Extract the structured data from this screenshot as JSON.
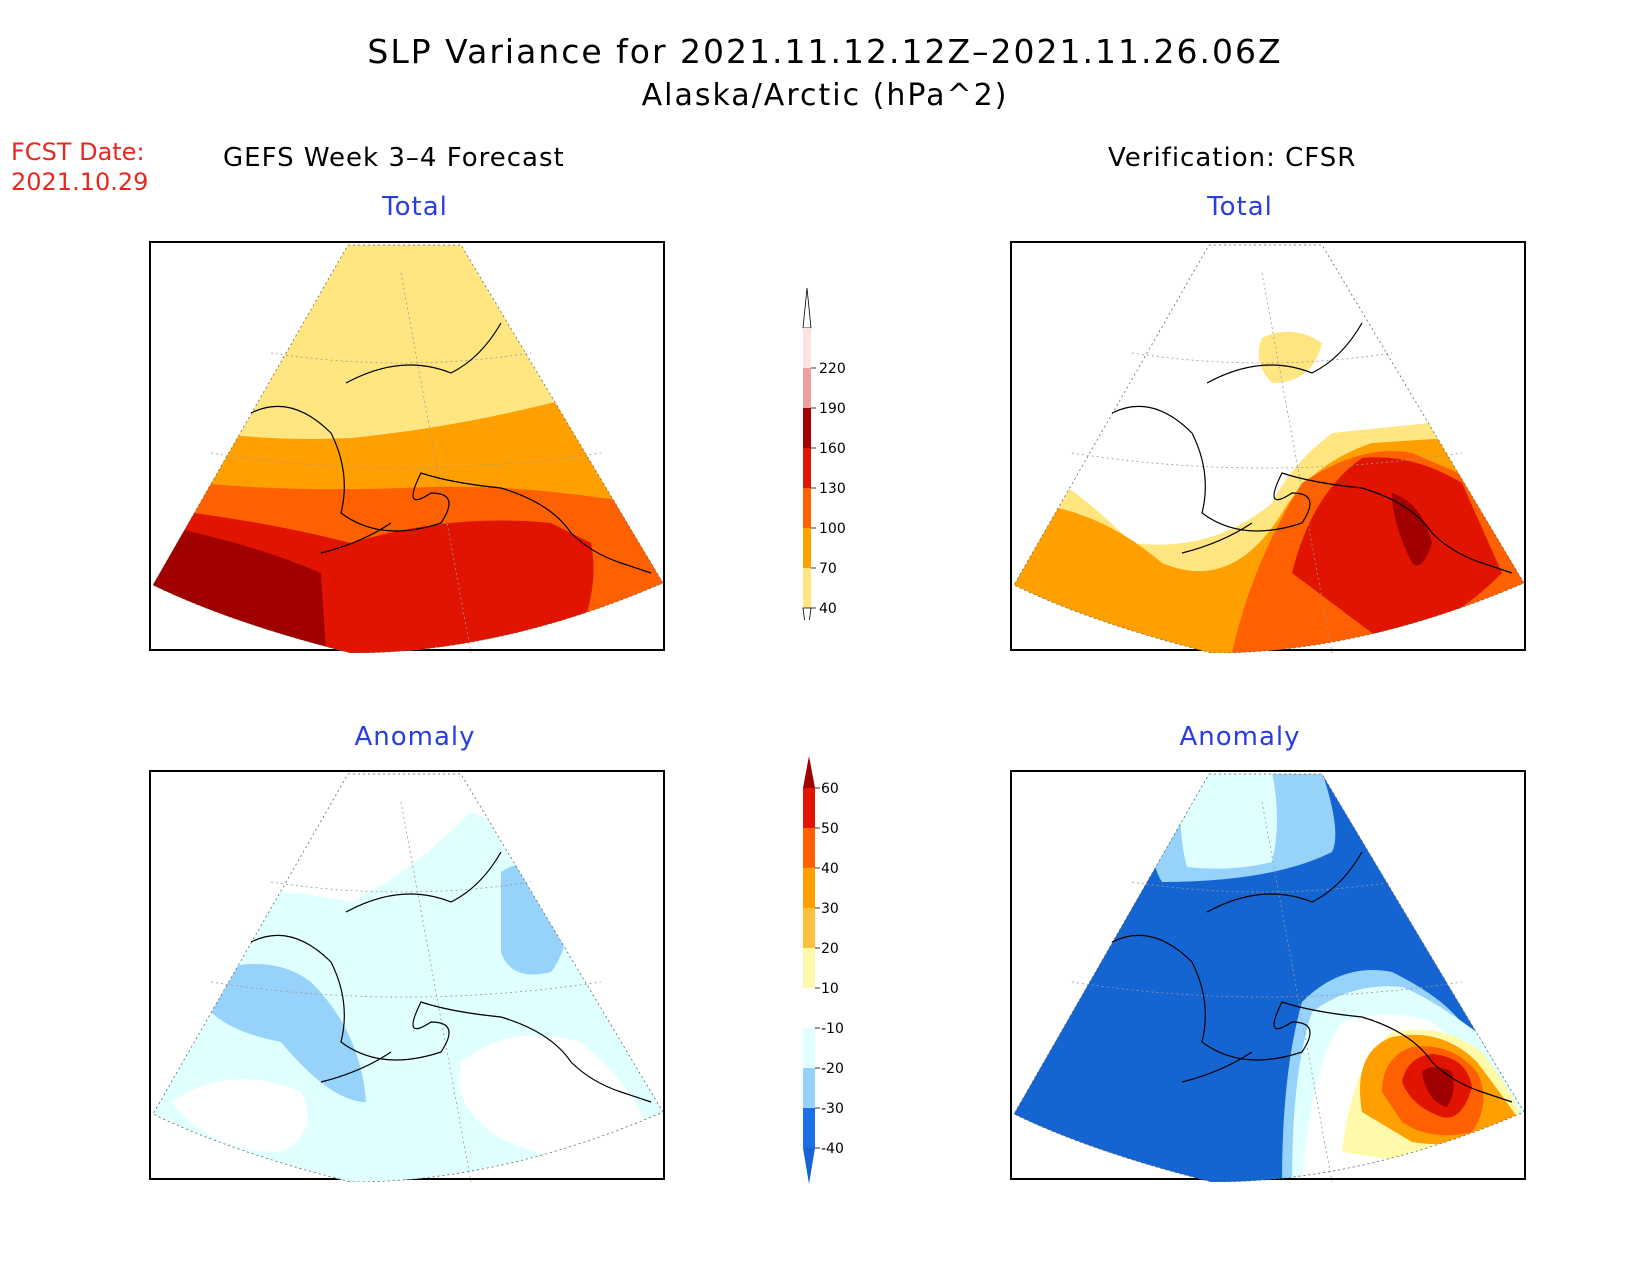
{
  "title": "SLP Variance for 2021.11.12.12Z–2021.11.26.06Z",
  "subtitle": "Alaska/Arctic (hPa^2)",
  "fcst": {
    "label": "FCST Date:",
    "date": "2021.10.29"
  },
  "columns": {
    "left": "GEFS Week 3–4 Forecast",
    "right": "Verification: CFSR"
  },
  "panels": {
    "top_left": "Total",
    "top_right": "Total",
    "bottom_left": "Anomaly",
    "bottom_right": "Anomaly"
  },
  "colorbar_total": {
    "labels": [
      "40",
      "70",
      "100",
      "130",
      "160",
      "190",
      "220"
    ],
    "colors": [
      "#ffe680",
      "#ffa000",
      "#ff6000",
      "#e01400",
      "#a00000",
      "#f0a0a0",
      "#fde2e2"
    ]
  },
  "colorbar_anomaly": {
    "labels": [
      "-40",
      "-30",
      "-20",
      "-10",
      "10",
      "20",
      "30",
      "40",
      "50",
      "60"
    ],
    "colors": [
      "#1464d2",
      "#1e6ee6",
      "#96d2fa",
      "#e0ffff",
      "#ffffff",
      "#fffaaa",
      "#ffc03c",
      "#ffa000",
      "#ff6000",
      "#e01400",
      "#a00000"
    ]
  }
}
